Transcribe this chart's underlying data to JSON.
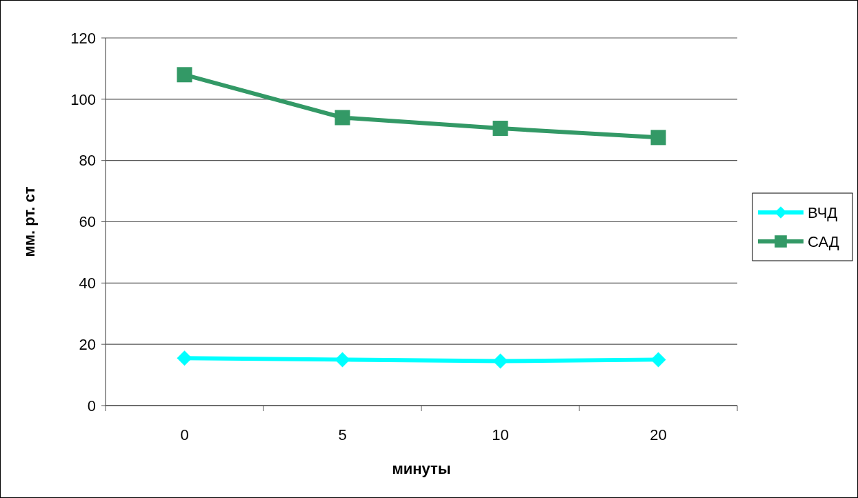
{
  "chart_data": {
    "type": "line",
    "xlabel": "минуты",
    "ylabel": "мм. рт. ст",
    "categories": [
      "0",
      "5",
      "10",
      "20"
    ],
    "series": [
      {
        "name": "ВЧД",
        "color": "#00ffff",
        "marker": "diamond",
        "values": [
          15.5,
          15,
          14.5,
          15
        ]
      },
      {
        "name": "САД",
        "color": "#339966",
        "marker": "square",
        "values": [
          108,
          94,
          90.5,
          87.5
        ]
      }
    ],
    "ylim": [
      0,
      120
    ],
    "yticks": [
      0,
      20,
      40,
      60,
      80,
      100,
      120
    ],
    "grid": "y",
    "legend": "right",
    "line_style": "solid"
  }
}
